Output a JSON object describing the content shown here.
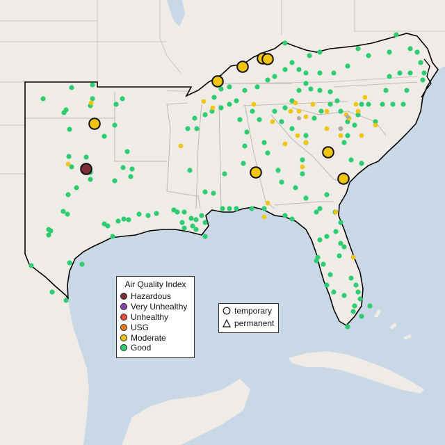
{
  "legend": {
    "title": "Air Quality Index",
    "categories": [
      {
        "label": "Hazardous",
        "color": "#7e2f38"
      },
      {
        "label": "Very Unhealthy",
        "color": "#8e44ad"
      },
      {
        "label": "Unhealthy",
        "color": "#e74c3c"
      },
      {
        "label": "USG",
        "color": "#e67e22"
      },
      {
        "label": "Moderate",
        "color": "#f1c40f"
      },
      {
        "label": "Good",
        "color": "#2ecc71"
      }
    ]
  },
  "monitor_types": [
    {
      "label": "temporary",
      "shape": "circle"
    },
    {
      "label": "permanent",
      "shape": "triangle"
    }
  ],
  "colors": {
    "land": "#efebe6",
    "water": "#c9d8e6",
    "state_border": "#c9c4bf",
    "region_outline": "#000000"
  }
}
